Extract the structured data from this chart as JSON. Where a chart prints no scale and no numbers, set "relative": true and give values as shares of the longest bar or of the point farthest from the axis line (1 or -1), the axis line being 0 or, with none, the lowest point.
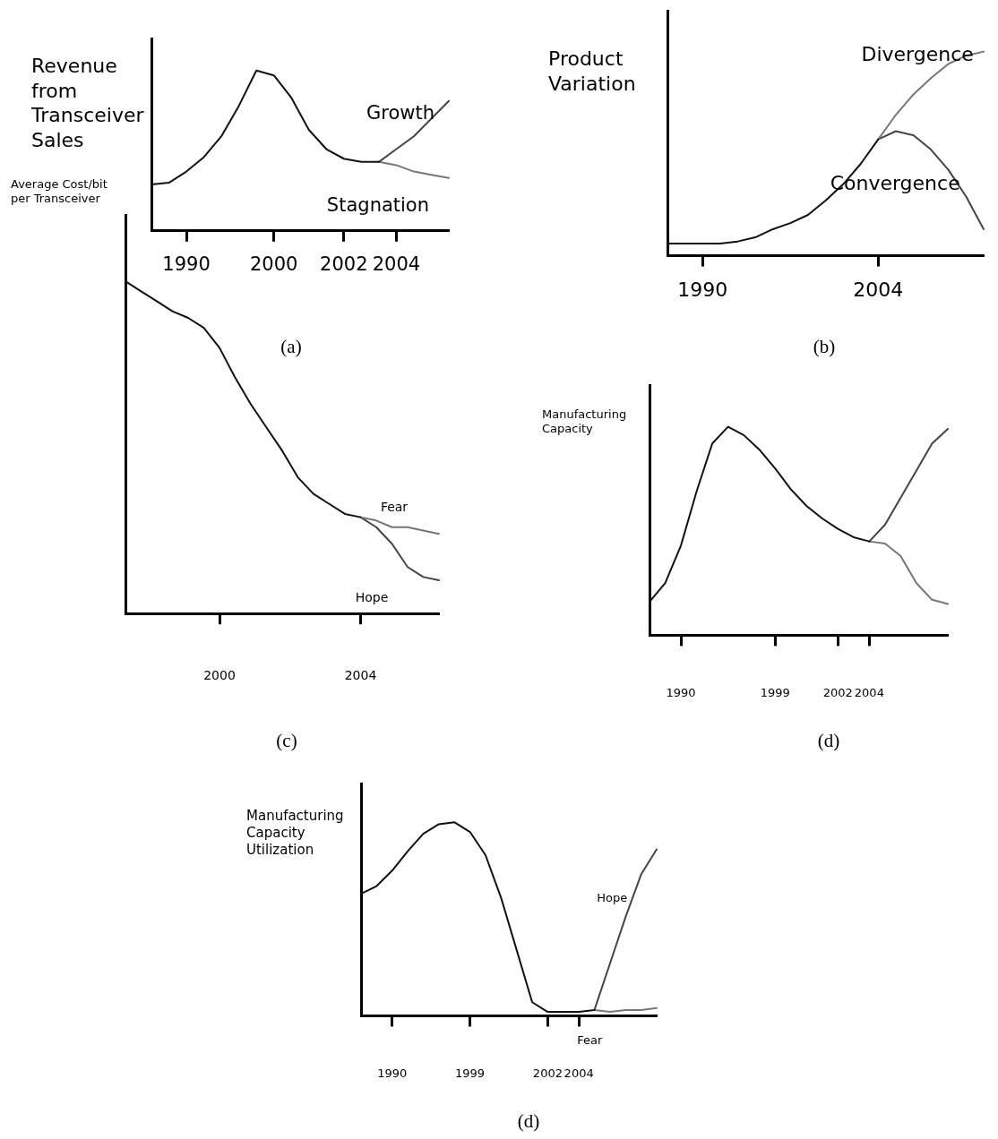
{
  "chart_data": [
    {
      "type": "line",
      "relative": true,
      "ylabel": "Revenue from Transceiver Sales",
      "tick_labels": "x",
      "marker": "none",
      "annotations": [
        "(a)"
      ],
      "categories": [
        null,
        null,
        "1990",
        null,
        null,
        null,
        null,
        "2000",
        null,
        null,
        null,
        "2002",
        null,
        null,
        "2004",
        null,
        null,
        null
      ],
      "series": [
        {
          "color": "#111111",
          "values": [
            0.29,
            0.3,
            0.37,
            0.46,
            0.59,
            0.78,
            1.0,
            0.97,
            0.83,
            0.63,
            0.51,
            0.45,
            0.43,
            0.43,
            null,
            null,
            null,
            null
          ]
        },
        {
          "name": "Growth",
          "color": "#444444",
          "values": [
            null,
            null,
            null,
            null,
            null,
            null,
            null,
            null,
            null,
            null,
            null,
            null,
            null,
            0.43,
            0.51,
            0.59,
            0.7,
            0.81
          ]
        },
        {
          "name": "Stagnation",
          "color": "#777777",
          "values": [
            null,
            null,
            null,
            null,
            null,
            null,
            null,
            null,
            null,
            null,
            null,
            null,
            null,
            0.43,
            0.41,
            0.37,
            0.35,
            0.33
          ]
        }
      ]
    },
    {
      "type": "line",
      "relative": true,
      "ylabel": "Product Variation",
      "tick_labels": "x",
      "marker": "none",
      "annotations": [
        "(b)"
      ],
      "categories": [
        null,
        null,
        "1990",
        null,
        null,
        null,
        null,
        null,
        null,
        null,
        null,
        null,
        "2004",
        null,
        null,
        null,
        null,
        null,
        null
      ],
      "series": [
        {
          "color": "#111111",
          "values": [
            0.06,
            0.06,
            0.06,
            0.06,
            0.07,
            0.09,
            0.13,
            0.16,
            0.2,
            0.27,
            0.35,
            0.45,
            0.57,
            null,
            null,
            null,
            null,
            null,
            null
          ]
        },
        {
          "name": "Divergence",
          "color": "#777777",
          "values": [
            null,
            null,
            null,
            null,
            null,
            null,
            null,
            null,
            null,
            null,
            null,
            null,
            0.57,
            0.69,
            0.79,
            0.87,
            0.94,
            0.98,
            1.0
          ]
        },
        {
          "name": "Convergence",
          "color": "#444444",
          "values": [
            null,
            null,
            null,
            null,
            null,
            null,
            null,
            null,
            null,
            null,
            null,
            null,
            0.57,
            0.61,
            0.59,
            0.52,
            0.42,
            0.29,
            0.13
          ]
        }
      ]
    },
    {
      "type": "line",
      "relative": true,
      "ylabel": "Average Cost/bit per Transceiver",
      "tick_labels": "x",
      "marker": "none",
      "annotations": [
        "(c)"
      ],
      "categories": [
        null,
        null,
        null,
        null,
        null,
        null,
        "2000",
        null,
        null,
        null,
        null,
        null,
        null,
        null,
        null,
        "2004",
        null,
        null,
        null,
        null,
        null
      ],
      "series": [
        {
          "color": "#111111",
          "values": [
            1.0,
            0.97,
            0.94,
            0.91,
            0.89,
            0.86,
            0.8,
            0.71,
            0.63,
            0.56,
            0.49,
            0.41,
            0.36,
            0.33,
            0.3,
            0.29,
            null,
            null,
            null,
            null,
            null
          ]
        },
        {
          "name": "Fear",
          "color": "#777777",
          "values": [
            null,
            null,
            null,
            null,
            null,
            null,
            null,
            null,
            null,
            null,
            null,
            null,
            null,
            null,
            null,
            0.29,
            0.28,
            0.26,
            0.26,
            0.25,
            0.24
          ]
        },
        {
          "name": "Hope",
          "color": "#444444",
          "values": [
            null,
            null,
            null,
            null,
            null,
            null,
            null,
            null,
            null,
            null,
            null,
            null,
            null,
            null,
            null,
            0.29,
            0.26,
            0.21,
            0.14,
            0.11,
            0.1
          ]
        }
      ]
    },
    {
      "type": "line",
      "relative": true,
      "ylabel": "Manufacturing Capacity",
      "tick_labels": "x",
      "marker": "none",
      "annotations": [
        "(d)"
      ],
      "categories": [
        null,
        null,
        "1990",
        null,
        null,
        null,
        null,
        null,
        "1999",
        null,
        null,
        null,
        "2002",
        null,
        "2004",
        null,
        null,
        null,
        null,
        null
      ],
      "series": [
        {
          "color": "#111111",
          "values": [
            0.16,
            0.25,
            0.43,
            0.69,
            0.92,
            1.0,
            0.96,
            0.89,
            0.8,
            0.7,
            0.62,
            0.56,
            0.51,
            0.47,
            0.45,
            null,
            null,
            null,
            null,
            null
          ]
        },
        {
          "color": "#444444",
          "values": [
            null,
            null,
            null,
            null,
            null,
            null,
            null,
            null,
            null,
            null,
            null,
            null,
            null,
            null,
            0.45,
            0.53,
            0.66,
            0.79,
            0.92,
            0.99
          ]
        },
        {
          "color": "#777777",
          "values": [
            null,
            null,
            null,
            null,
            null,
            null,
            null,
            null,
            null,
            null,
            null,
            null,
            null,
            null,
            0.45,
            0.44,
            0.38,
            0.25,
            0.17,
            0.15
          ]
        }
      ]
    },
    {
      "type": "line",
      "relative": true,
      "ylabel": "Manufacturing Capacity Utilization",
      "tick_labels": "x",
      "marker": "none",
      "annotations": [
        "(d)"
      ],
      "categories": [
        null,
        null,
        "1990",
        null,
        null,
        null,
        null,
        "1999",
        null,
        null,
        null,
        null,
        "2002",
        null,
        "2004",
        null,
        null,
        null,
        null,
        null
      ],
      "series": [
        {
          "color": "#111111",
          "values": [
            0.63,
            0.67,
            0.75,
            0.85,
            0.94,
            0.99,
            1.0,
            0.95,
            0.83,
            0.61,
            0.34,
            0.07,
            0.02,
            0.02,
            0.02,
            0.03,
            null,
            null,
            null,
            null
          ]
        },
        {
          "name": "Hope",
          "color": "#444444",
          "values": [
            null,
            null,
            null,
            null,
            null,
            null,
            null,
            null,
            null,
            null,
            null,
            null,
            null,
            null,
            null,
            0.03,
            0.27,
            0.51,
            0.73,
            0.86
          ]
        },
        {
          "name": "Fear",
          "color": "#777777",
          "values": [
            null,
            null,
            null,
            null,
            null,
            null,
            null,
            null,
            null,
            null,
            null,
            null,
            null,
            null,
            null,
            0.03,
            0.02,
            0.03,
            0.03,
            0.04
          ]
        }
      ]
    }
  ]
}
